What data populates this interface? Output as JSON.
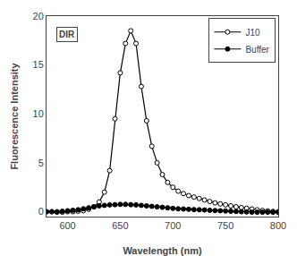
{
  "chart_data": {
    "type": "line",
    "x": [
      580,
      585,
      590,
      595,
      600,
      605,
      610,
      615,
      620,
      625,
      630,
      635,
      640,
      645,
      650,
      655,
      660,
      665,
      670,
      675,
      680,
      685,
      690,
      695,
      700,
      705,
      710,
      715,
      720,
      725,
      730,
      735,
      740,
      745,
      750,
      755,
      760,
      765,
      770,
      775,
      780,
      785,
      790,
      795,
      800
    ],
    "series": [
      {
        "name": "J10",
        "color": "black",
        "marker": "open_circle",
        "values": [
          0.0,
          0.0,
          -0.05,
          -0.05,
          0.0,
          0.0,
          0.05,
          0.1,
          0.25,
          0.5,
          1.0,
          2.0,
          4.2,
          9.5,
          14.2,
          17.2,
          18.5,
          17.2,
          12.8,
          9.3,
          6.7,
          5.0,
          3.8,
          3.0,
          2.5,
          2.1,
          1.85,
          1.65,
          1.5,
          1.35,
          1.2,
          1.05,
          0.9,
          0.8,
          0.7,
          0.6,
          0.5,
          0.42,
          0.35,
          0.28,
          0.2,
          0.13,
          0.08,
          0.03,
          0.0
        ]
      },
      {
        "name": "Buffer",
        "color": "black",
        "marker": "filled_circle",
        "values": [
          0.0,
          0.0,
          0.0,
          0.05,
          0.1,
          0.15,
          0.2,
          0.3,
          0.4,
          0.5,
          0.6,
          0.65,
          0.7,
          0.72,
          0.75,
          0.75,
          0.72,
          0.7,
          0.65,
          0.6,
          0.55,
          0.5,
          0.45,
          0.4,
          0.35,
          0.3,
          0.28,
          0.25,
          0.22,
          0.2,
          0.18,
          0.15,
          0.12,
          0.1,
          0.08,
          0.05,
          0.03,
          0.0,
          -0.02,
          -0.05,
          -0.05,
          -0.05,
          -0.05,
          -0.05,
          -0.05
        ]
      }
    ],
    "xlabel": "Wavelength (nm)",
    "ylabel": "Fluorescence Intensity",
    "annotation": "DIR",
    "xlim": [
      580,
      800
    ],
    "ylim": [
      -0.5,
      20
    ],
    "xticks": [
      600,
      650,
      700,
      750,
      800
    ],
    "yticks": [
      0,
      5,
      10,
      15,
      20
    ],
    "grid": false,
    "legend": "upper right"
  }
}
